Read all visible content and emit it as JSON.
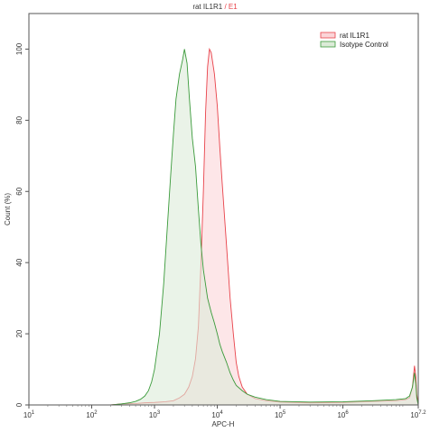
{
  "chart_data": {
    "type": "area",
    "title_prefix": "rat IL1R1",
    "title_separator": " / ",
    "title_suffix": "E1",
    "xlabel": "APC-H",
    "ylabel": "Count (%)",
    "x_scale": "log",
    "xlim": [
      10,
      15848932
    ],
    "ylim": [
      0,
      110
    ],
    "y_ticks": [
      0,
      20,
      40,
      60,
      80,
      100
    ],
    "x_ticks": [
      {
        "value": 10,
        "base": "10",
        "exp": "1"
      },
      {
        "value": 100,
        "base": "10",
        "exp": "2"
      },
      {
        "value": 1000,
        "base": "10",
        "exp": "3"
      },
      {
        "value": 10000,
        "base": "10",
        "exp": "4"
      },
      {
        "value": 100000,
        "base": "10",
        "exp": "5"
      },
      {
        "value": 1000000,
        "base": "10",
        "exp": "6"
      },
      {
        "value": 15848932,
        "base": "10",
        "exp": "7.2"
      }
    ],
    "grid": false,
    "legend_position": "top-right",
    "series": [
      {
        "name": "rat IL1R1",
        "stroke": "#e8424a",
        "fill": "#fbd5d8",
        "points": [
          [
            10,
            0
          ],
          [
            200,
            0
          ],
          [
            300,
            0.3
          ],
          [
            500,
            0.4
          ],
          [
            700,
            0.6
          ],
          [
            1000,
            0.7
          ],
          [
            1500,
            0.9
          ],
          [
            2000,
            1.2
          ],
          [
            2500,
            2
          ],
          [
            3000,
            3
          ],
          [
            3500,
            5
          ],
          [
            4000,
            8
          ],
          [
            4500,
            13
          ],
          [
            5000,
            22
          ],
          [
            5500,
            40
          ],
          [
            6000,
            60
          ],
          [
            6500,
            82
          ],
          [
            7000,
            95
          ],
          [
            7500,
            100
          ],
          [
            8000,
            99
          ],
          [
            9000,
            93
          ],
          [
            10000,
            84
          ],
          [
            11000,
            72
          ],
          [
            12000,
            62
          ],
          [
            14000,
            45
          ],
          [
            16000,
            30
          ],
          [
            18000,
            20
          ],
          [
            20000,
            12
          ],
          [
            22000,
            8
          ],
          [
            25000,
            5
          ],
          [
            30000,
            3
          ],
          [
            40000,
            1.8
          ],
          [
            60000,
            1.2
          ],
          [
            100000,
            0.8
          ],
          [
            300000,
            0.6
          ],
          [
            1000000,
            0.7
          ],
          [
            3000000,
            1
          ],
          [
            7000000,
            1.2
          ],
          [
            10000000,
            1.5
          ],
          [
            11500000,
            2
          ],
          [
            12800000,
            5
          ],
          [
            13800000,
            11
          ],
          [
            14500000,
            8
          ],
          [
            15000000,
            3
          ],
          [
            15848932,
            0
          ]
        ]
      },
      {
        "name": "Isotype Control",
        "stroke": "#3a9a3a",
        "fill": "#dcebd8",
        "points": [
          [
            10,
            0
          ],
          [
            200,
            0
          ],
          [
            300,
            0.3
          ],
          [
            400,
            0.6
          ],
          [
            500,
            1
          ],
          [
            600,
            1.6
          ],
          [
            700,
            2.5
          ],
          [
            800,
            4
          ],
          [
            900,
            6.5
          ],
          [
            1000,
            10
          ],
          [
            1200,
            20
          ],
          [
            1400,
            34
          ],
          [
            1600,
            50
          ],
          [
            1800,
            64
          ],
          [
            2000,
            76
          ],
          [
            2200,
            86
          ],
          [
            2500,
            93
          ],
          [
            2800,
            97
          ],
          [
            3000,
            100
          ],
          [
            3300,
            96
          ],
          [
            3600,
            86
          ],
          [
            4000,
            75
          ],
          [
            4500,
            67
          ],
          [
            5000,
            55
          ],
          [
            5500,
            45
          ],
          [
            6000,
            38
          ],
          [
            7000,
            30
          ],
          [
            8000,
            26
          ],
          [
            9000,
            23
          ],
          [
            10000,
            20
          ],
          [
            11000,
            17
          ],
          [
            12000,
            15
          ],
          [
            14000,
            12
          ],
          [
            16000,
            9
          ],
          [
            18000,
            7
          ],
          [
            20000,
            5.5
          ],
          [
            25000,
            4
          ],
          [
            30000,
            3
          ],
          [
            40000,
            2.2
          ],
          [
            60000,
            1.5
          ],
          [
            100000,
            1
          ],
          [
            300000,
            0.8
          ],
          [
            1000000,
            0.9
          ],
          [
            3000000,
            1.2
          ],
          [
            7000000,
            1.5
          ],
          [
            10000000,
            1.8
          ],
          [
            11500000,
            2.5
          ],
          [
            12800000,
            5
          ],
          [
            13800000,
            9
          ],
          [
            14500000,
            6
          ],
          [
            15000000,
            2
          ],
          [
            15848932,
            0
          ]
        ]
      }
    ]
  }
}
